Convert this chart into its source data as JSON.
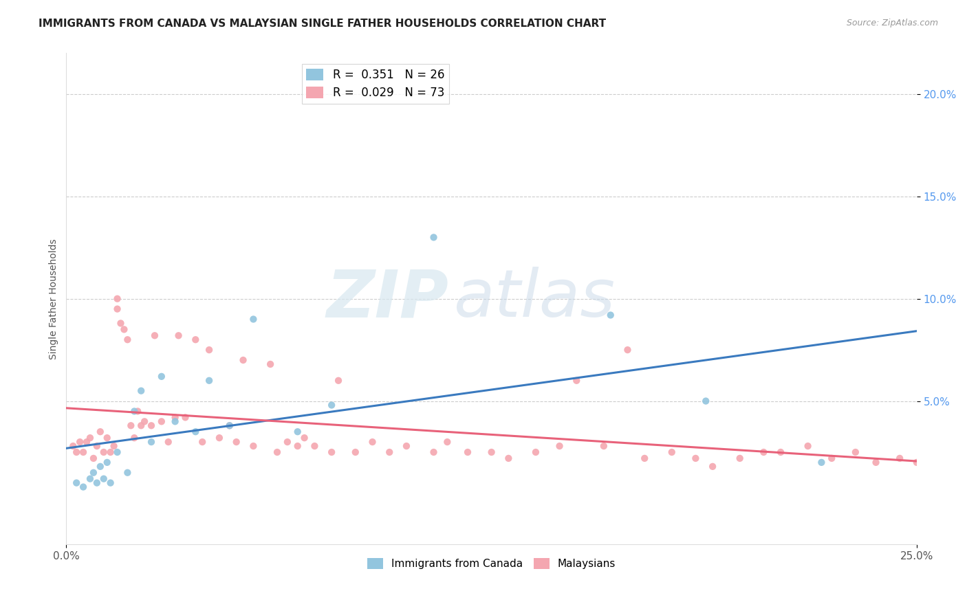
{
  "title": "IMMIGRANTS FROM CANADA VS MALAYSIAN SINGLE FATHER HOUSEHOLDS CORRELATION CHART",
  "source": "Source: ZipAtlas.com",
  "ylabel": "Single Father Households",
  "xlim": [
    0.0,
    0.25
  ],
  "ylim": [
    -0.02,
    0.22
  ],
  "legend1_label": "R =  0.351   N = 26",
  "legend2_label": "R =  0.029   N = 73",
  "blue_color": "#92c5de",
  "pink_color": "#f4a6b0",
  "blue_line_color": "#3a7abf",
  "pink_line_color": "#e8627a",
  "blue_scatter_x": [
    0.003,
    0.005,
    0.007,
    0.008,
    0.009,
    0.01,
    0.011,
    0.012,
    0.013,
    0.015,
    0.018,
    0.02,
    0.022,
    0.025,
    0.028,
    0.032,
    0.038,
    0.042,
    0.048,
    0.055,
    0.068,
    0.078,
    0.108,
    0.16,
    0.188,
    0.222
  ],
  "blue_scatter_y": [
    0.01,
    0.008,
    0.012,
    0.015,
    0.01,
    0.018,
    0.012,
    0.02,
    0.01,
    0.025,
    0.015,
    0.045,
    0.055,
    0.03,
    0.062,
    0.04,
    0.035,
    0.06,
    0.038,
    0.09,
    0.035,
    0.048,
    0.13,
    0.092,
    0.05,
    0.02
  ],
  "pink_scatter_x": [
    0.002,
    0.003,
    0.004,
    0.005,
    0.006,
    0.007,
    0.008,
    0.009,
    0.01,
    0.011,
    0.012,
    0.013,
    0.014,
    0.015,
    0.015,
    0.016,
    0.017,
    0.018,
    0.019,
    0.02,
    0.021,
    0.022,
    0.023,
    0.025,
    0.026,
    0.028,
    0.03,
    0.032,
    0.033,
    0.035,
    0.038,
    0.04,
    0.042,
    0.045,
    0.048,
    0.05,
    0.052,
    0.055,
    0.06,
    0.062,
    0.065,
    0.068,
    0.07,
    0.073,
    0.078,
    0.08,
    0.085,
    0.09,
    0.095,
    0.1,
    0.108,
    0.112,
    0.118,
    0.125,
    0.13,
    0.138,
    0.145,
    0.15,
    0.158,
    0.165,
    0.17,
    0.178,
    0.185,
    0.19,
    0.198,
    0.205,
    0.21,
    0.218,
    0.225,
    0.232,
    0.238,
    0.245,
    0.25
  ],
  "pink_scatter_y": [
    0.028,
    0.025,
    0.03,
    0.025,
    0.03,
    0.032,
    0.022,
    0.028,
    0.035,
    0.025,
    0.032,
    0.025,
    0.028,
    0.1,
    0.095,
    0.088,
    0.085,
    0.08,
    0.038,
    0.032,
    0.045,
    0.038,
    0.04,
    0.038,
    0.082,
    0.04,
    0.03,
    0.042,
    0.082,
    0.042,
    0.08,
    0.03,
    0.075,
    0.032,
    0.038,
    0.03,
    0.07,
    0.028,
    0.068,
    0.025,
    0.03,
    0.028,
    0.032,
    0.028,
    0.025,
    0.06,
    0.025,
    0.03,
    0.025,
    0.028,
    0.025,
    0.03,
    0.025,
    0.025,
    0.022,
    0.025,
    0.028,
    0.06,
    0.028,
    0.075,
    0.022,
    0.025,
    0.022,
    0.018,
    0.022,
    0.025,
    0.025,
    0.028,
    0.022,
    0.025,
    0.02,
    0.022,
    0.02
  ]
}
